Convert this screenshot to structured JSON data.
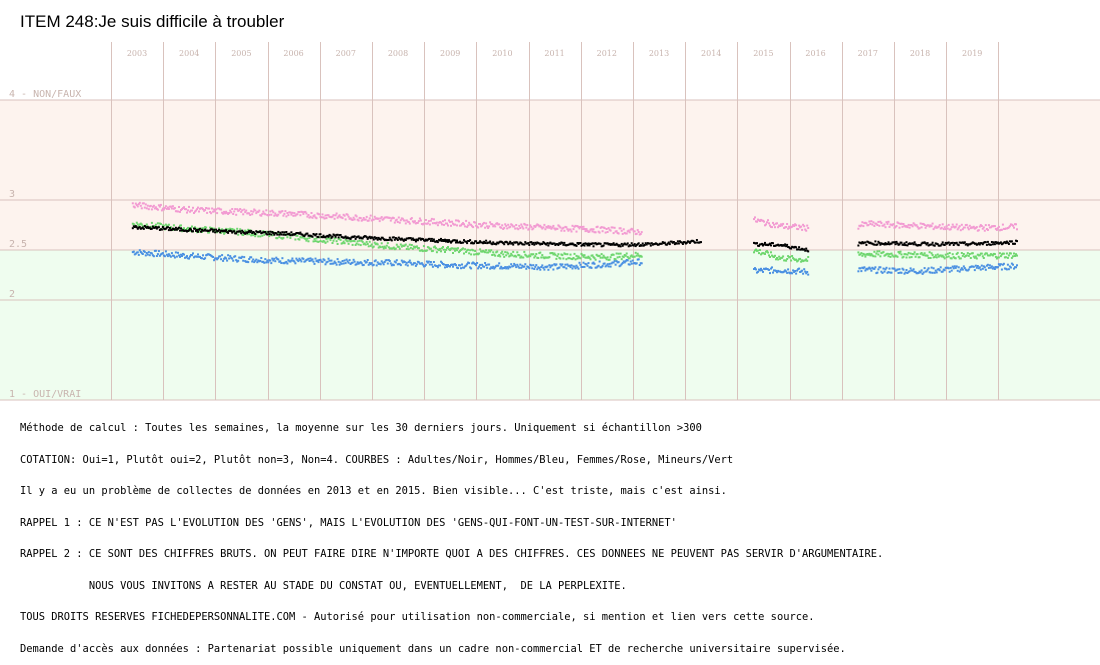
{
  "title": "ITEM 248:Je suis difficile à troubler",
  "colors": {
    "upper_band": "#fdf3ee",
    "lower_band": "#effdef",
    "gridline": "#d9c2bd",
    "axis_text": "#c8b4ae",
    "all": "#000000",
    "men": "#4a90e2",
    "women": "#f29ad2",
    "minors": "#6fd66f"
  },
  "notes": [
    "Méthode de calcul : Toutes les semaines, la moyenne sur les 30 derniers jours. Uniquement si échantillon >300",
    "COTATION: Oui=1, Plutôt oui=2, Plutôt non=3, Non=4. COURBES : Adultes/Noir, Hommes/Bleu, Femmes/Rose, Mineurs/Vert",
    "Il y a eu un problème de collectes de données en 2013 et en 2015. Bien visible... C'est triste, mais c'est ainsi.",
    "RAPPEL 1 : CE N'EST PAS L'EVOLUTION DES 'GENS', MAIS L'EVOLUTION DES 'GENS-QUI-FONT-UN-TEST-SUR-INTERNET'",
    "RAPPEL 2 : CE SONT DES CHIFFRES BRUTS. ON PEUT FAIRE DIRE N'IMPORTE QUOI A DES CHIFFRES. CES DONNEES NE PEUVENT PAS SERVIR D'ARGUMENTAIRE.",
    "           NOUS VOUS INVITONS A RESTER AU STADE DU CONSTAT OU, EVENTUELLEMENT,  DE LA PERPLEXITE.",
    "TOUS DROITS RESERVES FICHEDEPERSONNALITE.COM - Autorisé pour utilisation non-commerciale, si mention et lien vers cette source.",
    "Demande d'accès aux données : Partenariat possible uniquement dans un cadre non-commercial ET de recherche universitaire supervisée."
  ],
  "chart_data": {
    "type": "scatter",
    "x_tick_labels": [
      "2003",
      "2004",
      "2005",
      "2006",
      "2007",
      "2008",
      "2009",
      "2010",
      "2011",
      "2012",
      "2013",
      "2014",
      "2015",
      "2016",
      "2017",
      "2018",
      "2019"
    ],
    "y_tick_labels": [
      {
        "value": 4,
        "label": "4 - NON/FAUX"
      },
      {
        "value": 3,
        "label": "3"
      },
      {
        "value": 2.5,
        "label": "2.5"
      },
      {
        "value": 2,
        "label": "2"
      },
      {
        "value": 1,
        "label": "1 - OUI/VRAI"
      }
    ],
    "ylim": [
      1,
      4
    ],
    "xlim": [
      2002.5,
      2020
    ],
    "grid": true,
    "segments": [
      [
        2002.9,
        2013.8
      ],
      [
        2014.8,
        2015.85
      ],
      [
        2016.8,
        2019.85
      ]
    ],
    "series": [
      {
        "name": "Adultes",
        "color_key": "all",
        "anchors": [
          [
            2002.9,
            2.73
          ],
          [
            2004,
            2.7
          ],
          [
            2005,
            2.68
          ],
          [
            2006,
            2.66
          ],
          [
            2007,
            2.63
          ],
          [
            2008,
            2.61
          ],
          [
            2009,
            2.59
          ],
          [
            2010,
            2.57
          ],
          [
            2011,
            2.56
          ],
          [
            2012,
            2.55
          ],
          [
            2013,
            2.56
          ],
          [
            2013.8,
            2.59
          ],
          [
            2014.8,
            2.56
          ],
          [
            2015.3,
            2.55
          ],
          [
            2015.85,
            2.5
          ],
          [
            2016.8,
            2.56
          ],
          [
            2017,
            2.57
          ],
          [
            2018,
            2.56
          ],
          [
            2019,
            2.56
          ],
          [
            2019.85,
            2.58
          ]
        ]
      },
      {
        "name": "Hommes",
        "color_key": "men",
        "anchors": [
          [
            2002.9,
            2.48
          ],
          [
            2004,
            2.44
          ],
          [
            2005,
            2.41
          ],
          [
            2006,
            2.39
          ],
          [
            2007,
            2.38
          ],
          [
            2008,
            2.37
          ],
          [
            2009,
            2.35
          ],
          [
            2010,
            2.34
          ],
          [
            2011,
            2.33
          ],
          [
            2012,
            2.36
          ],
          [
            2012.6,
            2.38
          ],
          [
            2014.8,
            2.29
          ],
          [
            2015.3,
            2.3
          ],
          [
            2015.85,
            2.28
          ],
          [
            2016.8,
            2.31
          ],
          [
            2017,
            2.3
          ],
          [
            2018,
            2.29
          ],
          [
            2019,
            2.32
          ],
          [
            2019.85,
            2.34
          ]
        ]
      },
      {
        "name": "Femmes",
        "color_key": "women",
        "anchors": [
          [
            2002.9,
            2.95
          ],
          [
            2004,
            2.9
          ],
          [
            2005,
            2.88
          ],
          [
            2006,
            2.86
          ],
          [
            2007,
            2.83
          ],
          [
            2008,
            2.8
          ],
          [
            2009,
            2.77
          ],
          [
            2010,
            2.74
          ],
          [
            2011,
            2.72
          ],
          [
            2012,
            2.7
          ],
          [
            2012.6,
            2.68
          ],
          [
            2014.8,
            2.8
          ],
          [
            2015.3,
            2.74
          ],
          [
            2015.85,
            2.72
          ],
          [
            2016.8,
            2.74
          ],
          [
            2017,
            2.76
          ],
          [
            2018,
            2.74
          ],
          [
            2019,
            2.72
          ],
          [
            2019.85,
            2.73
          ]
        ]
      },
      {
        "name": "Mineurs",
        "color_key": "minors",
        "anchors": [
          [
            2002.9,
            2.76
          ],
          [
            2004,
            2.71
          ],
          [
            2005,
            2.68
          ],
          [
            2006,
            2.63
          ],
          [
            2007,
            2.58
          ],
          [
            2008,
            2.53
          ],
          [
            2009,
            2.5
          ],
          [
            2010,
            2.46
          ],
          [
            2011,
            2.44
          ],
          [
            2012,
            2.43
          ],
          [
            2012.6,
            2.45
          ],
          [
            2014.8,
            2.5
          ],
          [
            2015.3,
            2.42
          ],
          [
            2015.85,
            2.4
          ],
          [
            2016.8,
            2.45
          ],
          [
            2017,
            2.46
          ],
          [
            2018,
            2.45
          ],
          [
            2019,
            2.44
          ],
          [
            2019.85,
            2.45
          ]
        ]
      }
    ]
  }
}
